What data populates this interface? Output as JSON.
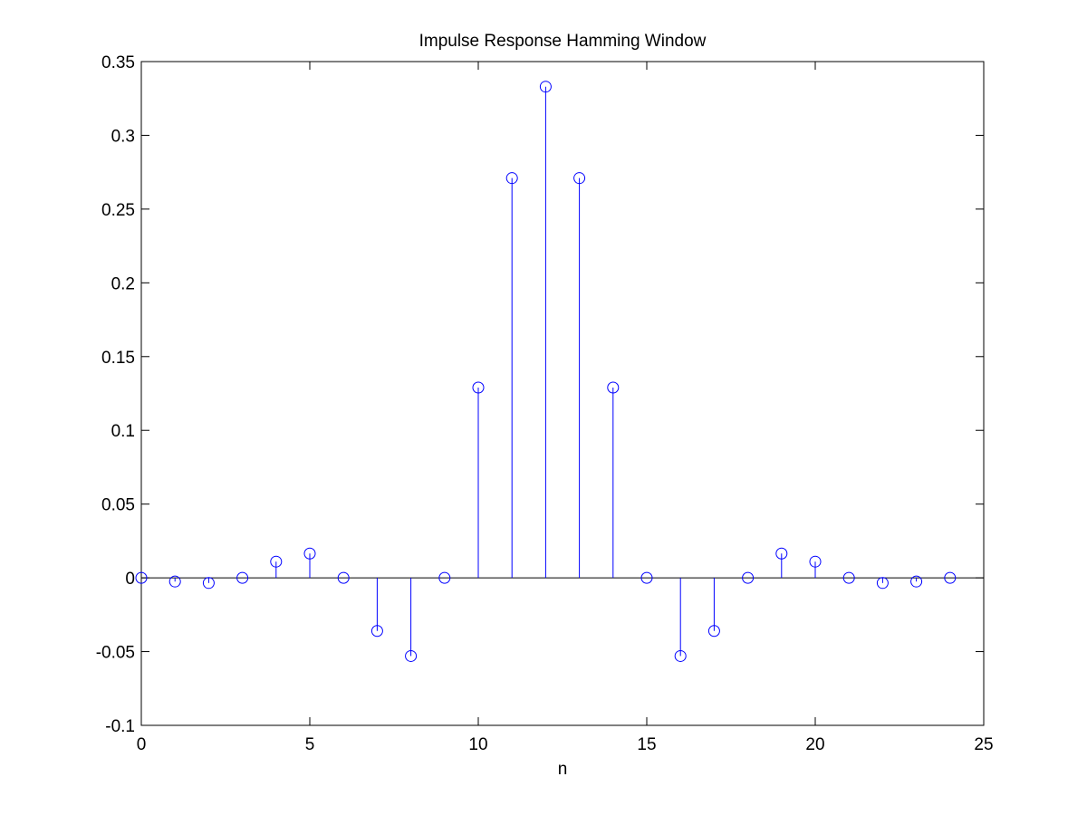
{
  "chart_data": {
    "type": "stem",
    "title": "Impulse Response Hamming Window",
    "xlabel": "n",
    "ylabel": "",
    "xlim": [
      0,
      25
    ],
    "ylim": [
      -0.1,
      0.35
    ],
    "xticks": [
      0,
      5,
      10,
      15,
      20,
      25
    ],
    "xtick_labels": [
      "0",
      "5",
      "10",
      "15",
      "20",
      "25"
    ],
    "yticks": [
      -0.1,
      -0.05,
      0,
      0.05,
      0.1,
      0.15,
      0.2,
      0.25,
      0.3,
      0.35
    ],
    "ytick_labels": [
      "-0.1",
      "-0.05",
      "0",
      "0.05",
      "0.1",
      "0.15",
      "0.2",
      "0.25",
      "0.3",
      "0.35"
    ],
    "grid": false,
    "baseline": 0,
    "marker": "circle",
    "color": "#0000ff",
    "series": [
      {
        "x": [
          0,
          1,
          2,
          3,
          4,
          5,
          6,
          7,
          8,
          9,
          10,
          11,
          12,
          13,
          14,
          15,
          16,
          17,
          18,
          19,
          20,
          21,
          22,
          23,
          24
        ],
        "values": [
          0,
          -0.0025,
          -0.0035,
          0,
          0.011,
          0.0165,
          0,
          -0.036,
          -0.053,
          0,
          0.129,
          0.271,
          0.333,
          0.271,
          0.129,
          0,
          -0.053,
          -0.036,
          0,
          0.0165,
          0.011,
          0,
          -0.0035,
          -0.0025,
          0
        ]
      }
    ]
  }
}
